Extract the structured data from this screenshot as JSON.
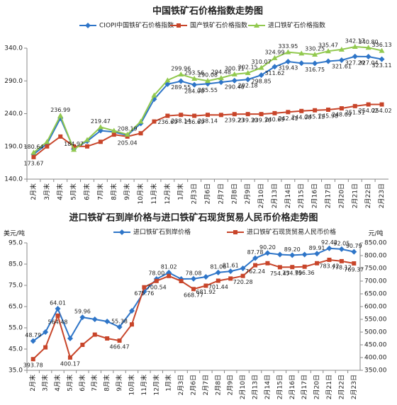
{
  "chart_data": [
    {
      "type": "line",
      "title": "中国铁矿石价格指数走势图",
      "categories": [
        "2月末",
        "3月末",
        "4月末",
        "5月末",
        "6月末",
        "7月末",
        "8月末",
        "9月末",
        "10月末",
        "11月末",
        "12月末",
        "1月末",
        "2月3日",
        "2月6日",
        "2月7日",
        "2月8日",
        "2月9日",
        "2月10日",
        "2月13日",
        "2月14日",
        "2月15日",
        "2月16日",
        "2月17日",
        "2月20日",
        "2月21日",
        "2月22日",
        "2月23日"
      ],
      "ylim": [
        140,
        340
      ],
      "yticks": [
        {
          "value": 140,
          "label": "140.0"
        },
        {
          "value": 190,
          "label": "190.0"
        },
        {
          "value": 240,
          "label": "240.0"
        },
        {
          "value": 290,
          "label": "290.0"
        },
        {
          "value": 340,
          "label": "340.0"
        }
      ],
      "series": [
        {
          "name": "CIOPI中国铁矿石价格指数",
          "color": "#2e75c8",
          "marker": "diamond",
          "values": [
            178,
            194,
            233,
            186,
            198,
            214,
            212,
            207,
            225,
            262,
            285,
            289.55,
            284.0,
            285.55,
            288,
            290.46,
            292.18,
            298.85,
            311.62,
            319.43,
            317,
            316.75,
            320,
            321.61,
            327.29,
            327.04,
            323.11
          ],
          "value_labels": [
            null,
            null,
            null,
            null,
            null,
            null,
            null,
            null,
            null,
            null,
            null,
            "289.55",
            "284.00",
            "285.55",
            null,
            "290.46",
            "292.18",
            "298.85",
            "311.62",
            "319.43",
            null,
            "316.75",
            null,
            "321.61",
            "327.29",
            "327.04",
            "323.11"
          ]
        },
        {
          "name": "国产铁矿石价格指数",
          "color": "#c8452a",
          "marker": "square",
          "values": [
            173.67,
            190,
            205,
            190,
            190,
            197,
            208,
            205.04,
            210,
            228,
            236.69,
            238.14,
            236.69,
            238.14,
            238,
            239.23,
            239.3,
            239.3,
            240.69,
            242.41,
            244.0,
            245.11,
            245.98,
            248.09,
            251.51,
            254.02,
            254.02
          ],
          "value_labels": [
            "173.67",
            null,
            null,
            null,
            null,
            null,
            null,
            "205.04",
            null,
            null,
            "236.69",
            "238.14",
            "236.69",
            "238.14",
            null,
            "239.23",
            "239.30",
            "239.30",
            "240.69",
            "242.41",
            "244.00",
            "245.11",
            "245.98",
            "248.09",
            "251.51",
            "254.02",
            "254.02"
          ]
        },
        {
          "name": "进口铁矿石价格指数",
          "color": "#92c94f",
          "marker": "triangle",
          "values": [
            180.64,
            197,
            236.99,
            184.97,
            200,
            219.47,
            214,
            208.19,
            228,
            268,
            291,
            299.96,
            293.56,
            290.08,
            294.48,
            300.11,
            302.15,
            310.07,
            324.99,
            333.95,
            332,
            330.25,
            335.47,
            338,
            342.17,
            340.8,
            336.13
          ],
          "value_labels": [
            "180.64",
            null,
            "236.99",
            "184.97",
            null,
            "219.47",
            null,
            "208.19",
            null,
            null,
            null,
            "299.96",
            "293.56",
            "290.08",
            "294.48",
            "300.11",
            "302.15",
            "310.07",
            "324.99",
            "333.95",
            null,
            "330.25",
            "335.47",
            null,
            "342.17",
            "340.80",
            "336.13"
          ]
        }
      ]
    },
    {
      "type": "line",
      "title": "进口铁矿石到岸价格与进口铁矿石现货贸易人民币价格走势图",
      "y_label": "美元/吨",
      "y2_label": "元/吨",
      "categories": [
        "2月末",
        "3月末",
        "4月末",
        "5月末",
        "6月末",
        "7月末",
        "8月末",
        "9月末",
        "10月末",
        "11月末",
        "12月末",
        "1月末",
        "2月3日",
        "2月6日",
        "2月7日",
        "2月8日",
        "2月9日",
        "2月10日",
        "2月13日",
        "2月14日",
        "2月15日",
        "2月16日",
        "2月17日",
        "2月20日",
        "2月21日",
        "2月22日",
        "2月23日"
      ],
      "ylim": [
        35,
        95
      ],
      "yticks": [
        {
          "value": 35,
          "label": "35.0"
        },
        {
          "value": 45,
          "label": "45.0"
        },
        {
          "value": 55,
          "label": "55.0"
        },
        {
          "value": 65,
          "label": "65.0"
        },
        {
          "value": 75,
          "label": "75.0"
        },
        {
          "value": 85,
          "label": "85.0"
        },
        {
          "value": 95,
          "label": "95.0"
        }
      ],
      "y2lim": [
        350,
        850
      ],
      "y2ticks": [
        {
          "value": 350,
          "label": "350.00"
        },
        {
          "value": 400,
          "label": "400.00"
        },
        {
          "value": 450,
          "label": "450.00"
        },
        {
          "value": 500,
          "label": "500.00"
        },
        {
          "value": 550,
          "label": "550.00"
        },
        {
          "value": 600,
          "label": "600.00"
        },
        {
          "value": 650,
          "label": "650.00"
        },
        {
          "value": 700,
          "label": "700.00"
        },
        {
          "value": 750,
          "label": "750.00"
        },
        {
          "value": 800,
          "label": "800.00"
        },
        {
          "value": 850,
          "label": "850.00"
        }
      ],
      "series": [
        {
          "name": "进口铁矿石到岸价格",
          "color": "#2e75c8",
          "marker": "diamond",
          "values": [
            48.79,
            53,
            64.01,
            50,
            59.96,
            59,
            58,
            55.38,
            63,
            72,
            78.0,
            81.02,
            78,
            78.08,
            79,
            81.06,
            81.61,
            83,
            87.78,
            90.2,
            89.5,
            89.2,
            89.5,
            89.91,
            92.42,
            92.05,
            90.79
          ],
          "value_labels": [
            "48.79",
            null,
            "64.01",
            null,
            "59.96",
            null,
            null,
            "55.38",
            null,
            null,
            "78.00",
            "81.02",
            null,
            "78.08",
            null,
            "81.06",
            "81.61",
            null,
            "87.78",
            "90.20",
            null,
            "89.20",
            null,
            "89.91",
            "92.42",
            "92.05",
            "90.79"
          ]
        },
        {
          "name": "进口铁矿石现货贸易人民币价格",
          "color": "#c8452a",
          "marker": "square",
          "axis": "y2",
          "values": [
            393.78,
            440,
            564.48,
            400.17,
            450,
            490,
            475,
            466.47,
            530,
            675.76,
            700.54,
            720,
            700,
            668.77,
            681.92,
            701.44,
            710,
            720.28,
            762.24,
            770,
            754.47,
            754.99,
            756.36,
            770,
            783.42,
            778.12,
            769.37
          ],
          "value_labels": [
            "393.78",
            null,
            "564.48",
            "400.17",
            null,
            null,
            null,
            "466.47",
            null,
            "675.76",
            "700.54",
            null,
            null,
            "668.77",
            "681.92",
            "701.44",
            null,
            "720.28",
            "762.24",
            null,
            "754.47",
            "754.99",
            "756.36",
            null,
            "783.42",
            "778.12",
            "769.37"
          ]
        }
      ]
    }
  ]
}
